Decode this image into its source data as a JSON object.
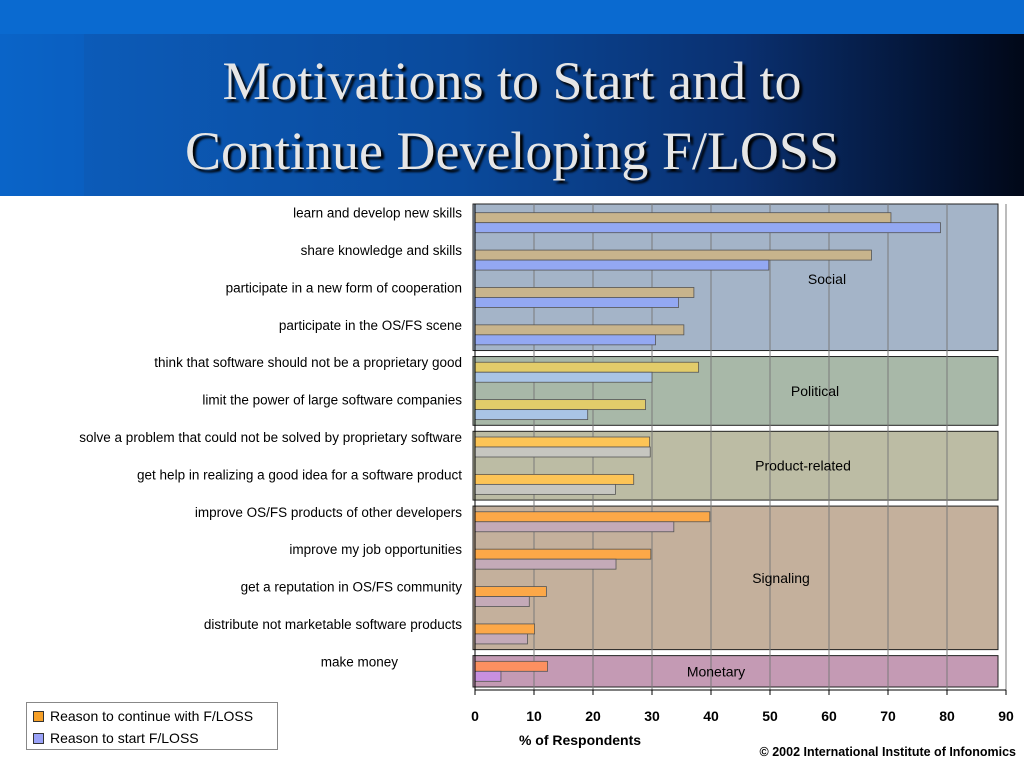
{
  "slide": {
    "title_lines": [
      "Motivations to Start and to",
      "Continue Developing F/LOSS"
    ],
    "copyright": "© 2002 International Institute of Infonomics"
  },
  "chart_data": {
    "type": "bar",
    "orientation": "horizontal",
    "xlabel": "% of Respondents",
    "xlim": [
      0,
      90
    ],
    "xticks": [
      0,
      10,
      20,
      30,
      40,
      50,
      60,
      70,
      80,
      90
    ],
    "grid": true,
    "legend_position": "bottom-left",
    "categories": [
      "learn and develop new skills",
      "share knowledge and skills",
      "participate in a new form of cooperation",
      "participate in the OS/FS scene",
      "think that software should not be a proprietary good",
      "limit the power of large software companies",
      "solve a problem that could not be solved by proprietary software",
      "get help in realizing a good idea for a software product",
      "improve OS/FS products of other developers",
      "improve my job opportunities",
      "get a reputation in OS/FS community",
      "distribute not marketable software products",
      "make money"
    ],
    "series": [
      {
        "name": "Reason to continue with F/LOSS",
        "values": [
          70.5,
          67.2,
          37.1,
          35.4,
          37.9,
          28.9,
          29.6,
          26.9,
          39.8,
          29.8,
          12.1,
          10.1,
          12.3
        ]
      },
      {
        "name": "Reason to start F/LOSS",
        "values": [
          78.9,
          49.8,
          34.5,
          30.6,
          30.0,
          19.1,
          29.7,
          23.8,
          33.7,
          23.9,
          9.2,
          8.9,
          4.4
        ]
      }
    ],
    "groups": [
      {
        "name": "Social",
        "start": 0,
        "end": 3,
        "color": "#a4b4c8",
        "bar_colors": [
          "#c8b48c",
          "#93a8f2"
        ]
      },
      {
        "name": "Political",
        "start": 4,
        "end": 5,
        "color": "#a8b8a8",
        "bar_colors": [
          "#e2cc6a",
          "#a9c4e6"
        ]
      },
      {
        "name": "Product-related",
        "start": 6,
        "end": 7,
        "color": "#bcbca4",
        "bar_colors": [
          "#fcc456",
          "#c6c6c0"
        ]
      },
      {
        "name": "Signaling",
        "start": 8,
        "end": 11,
        "color": "#c4b09c",
        "bar_colors": [
          "#fca848",
          "#c4aab8"
        ]
      },
      {
        "name": "Monetary",
        "start": 12,
        "end": 12,
        "color": "#c49ab4",
        "bar_colors": [
          "#fc9060",
          "#c890e0"
        ]
      }
    ],
    "legend_colors": [
      "#f6a028",
      "#9aa2f8"
    ]
  }
}
